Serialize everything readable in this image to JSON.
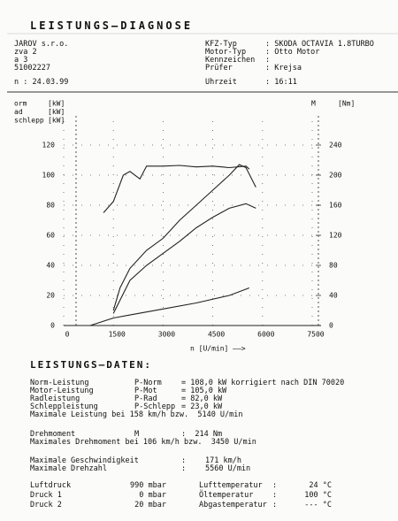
{
  "header": {
    "title": "LEISTUNGS–DIAGNOSE",
    "left": [
      "JAROV s.r.o.",
      "zva 2",
      "a 3",
      "51002227",
      "n : 24.03.99"
    ],
    "right": [
      [
        "KFZ-Typ",
        ": SKODA OCTAVIA 1.8TURBO"
      ],
      [
        "Motor-Typ",
        ": Otto Motor"
      ],
      [
        "Kennzeichen",
        ":"
      ],
      [
        "Prüfer",
        ": Krejsa"
      ],
      [
        "Uhrzeit",
        ": 16:11"
      ]
    ]
  },
  "chart_data": {
    "type": "line",
    "x_label": "n [U/min] ——>",
    "xlim": [
      0,
      7500
    ],
    "xticks": [
      0,
      1500,
      3000,
      4500,
      6000,
      7500
    ],
    "ylim": [
      0,
      140
    ],
    "yticks": [
      0,
      20,
      40,
      60,
      80,
      100,
      120
    ],
    "y2lim": [
      0,
      280
    ],
    "y2ticks": [
      0,
      40,
      80,
      120,
      160,
      200,
      240
    ],
    "grid": true,
    "series": [
      {
        "name": "orm",
        "unit": "[kW]",
        "color": "#222",
        "x": [
          1500,
          1700,
          2000,
          2500,
          3000,
          3500,
          4000,
          4500,
          5000,
          5300,
          5500,
          5800
        ],
        "values": [
          10,
          25,
          38,
          50,
          58,
          70,
          80,
          90,
          100,
          107,
          105,
          92
        ]
      },
      {
        "name": "ad",
        "unit": "[kW]",
        "color": "#222",
        "x": [
          1500,
          2000,
          2500,
          3000,
          3500,
          4000,
          4500,
          5000,
          5500,
          5800
        ],
        "values": [
          8,
          30,
          40,
          48,
          56,
          65,
          72,
          78,
          81,
          78
        ]
      },
      {
        "name": "schlepp",
        "unit": "[kW]",
        "color": "#222",
        "x": [
          800,
          1500,
          2000,
          3000,
          4000,
          5000,
          5600
        ],
        "values": [
          0,
          5,
          7,
          11,
          15,
          20,
          25
        ]
      },
      {
        "name": "M",
        "unit": "[Nm]",
        "color": "#222",
        "axis": "y2",
        "x": [
          1200,
          1500,
          1800,
          2000,
          2300,
          2500,
          3000,
          3500,
          4000,
          4500,
          5000,
          5500,
          5600
        ],
        "values": [
          150,
          165,
          200,
          205,
          195,
          212,
          212,
          213,
          211,
          212,
          210,
          212,
          208
        ]
      }
    ]
  },
  "data_section": {
    "title": "LEISTUNGS–DATEN:",
    "rows": [
      [
        "Norm-Leistung",
        "P-Norm",
        "= 108,0 kW korrigiert nach DIN 70020"
      ],
      [
        "Motor-Leistung",
        "P-Mot",
        "= 105,0 kW"
      ],
      [
        "Radleistung",
        "P-Rad",
        "= 82,0 kW"
      ],
      [
        "Schleppleistung",
        "P-Schlepp",
        "= 23,0 kW"
      ]
    ],
    "max_power": "Maximale Leistung bei 158 km/h bzw.  5140 U/min",
    "torque": [
      "Drehmoment",
      "M",
      ":  214 Nm"
    ],
    "max_torque": "Maximales Drehmoment bei 106 km/h bzw.  3450 U/min",
    "speed_rows": [
      [
        "Maximale Geschwindigkeit",
        ":",
        "171 km/h"
      ],
      [
        "Maximale Drehzahl",
        ":",
        "5560 U/min"
      ]
    ],
    "ambient_rows": [
      [
        "Luftdruck",
        "990 mbar",
        "Lufttemperatur",
        ":",
        "24 °C"
      ],
      [
        "Druck 1",
        "0 mbar",
        "Öltemperatur",
        ":",
        "100 °C"
      ],
      [
        "Druck 2",
        "20 mbar",
        "Abgastemperatur",
        ":",
        "--- °C"
      ]
    ]
  }
}
